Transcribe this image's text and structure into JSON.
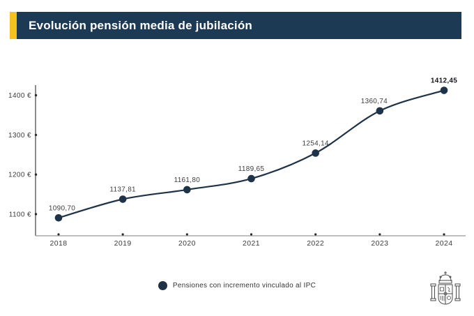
{
  "header": {
    "title": "Evolución pensión media de jubilación",
    "accent_color": "#F2C21E",
    "bar_color": "#1D3A55"
  },
  "chart_data": {
    "type": "line",
    "title": "Evolución pensión media de jubilación",
    "categories": [
      "2018",
      "2019",
      "2020",
      "2021",
      "2022",
      "2023",
      "2024"
    ],
    "series": [
      {
        "name": "Pensiones con incremento vinculado al IPC",
        "values": [
          1090.7,
          1137.81,
          1161.8,
          1189.65,
          1254.14,
          1360.74,
          1412.45
        ]
      }
    ],
    "point_labels": [
      "1090,70",
      "1137,81",
      "1161,80",
      "1189,65",
      "1254,14",
      "1360,74",
      "1412,45"
    ],
    "xlabel": "",
    "ylabel": "",
    "y_ticks": [
      "1100 €",
      "1200 €",
      "1300 €",
      "1400 €"
    ],
    "y_tick_values": [
      1100,
      1200,
      1300,
      1400
    ],
    "ylim": [
      1045,
      1425
    ],
    "grid": false,
    "legend_position": "bottom-center",
    "line_color": "#1E3348",
    "axis_color": "#3F3F3F",
    "x_axis_line_color": "#A9A9A9",
    "tick_label_color": "#3B3B3B",
    "data_label_color": "#3E3E3E",
    "last_label_color": "#16161A",
    "emphasized_last_point": true
  },
  "legend": {
    "marker_color": "#1E3348",
    "label": "Pensiones con incremento vinculado al IPC"
  },
  "footer": {
    "logo_name": "spain-coat-of-arms",
    "logo_color": "#4A4A4A"
  }
}
